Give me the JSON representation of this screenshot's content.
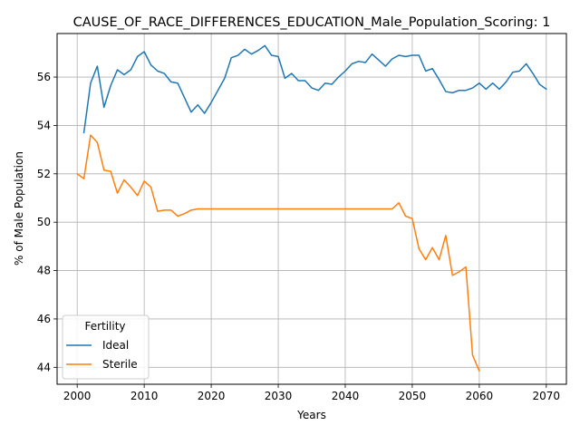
{
  "chart_data": {
    "type": "line",
    "title": "CAUSE_OF_RACE_DIFFERENCES_EDUCATION_Male_Population_Scoring: 1",
    "xlabel": "Years",
    "ylabel": "% of Male Population",
    "xlim": [
      1997,
      2073
    ],
    "ylim": [
      43.3,
      57.8
    ],
    "xticks": [
      2000,
      2010,
      2020,
      2030,
      2040,
      2050,
      2060,
      2070
    ],
    "yticks": [
      44,
      46,
      48,
      50,
      52,
      54,
      56
    ],
    "grid": true,
    "legend": {
      "title": "Fertility",
      "position": "lower-left"
    },
    "series": [
      {
        "name": "Ideal",
        "color": "#1f77b4",
        "x": [
          2001,
          2002,
          2003,
          2004,
          2005,
          2006,
          2007,
          2008,
          2009,
          2010,
          2011,
          2012,
          2013,
          2014,
          2015,
          2016,
          2017,
          2018,
          2019,
          2020,
          2021,
          2022,
          2023,
          2024,
          2025,
          2026,
          2027,
          2028,
          2029,
          2030,
          2031,
          2032,
          2033,
          2034,
          2035,
          2036,
          2037,
          2038,
          2039,
          2040,
          2041,
          2042,
          2043,
          2044,
          2045,
          2046,
          2047,
          2048,
          2049,
          2050,
          2051,
          2052,
          2053,
          2054,
          2055,
          2056,
          2057,
          2058,
          2059,
          2060,
          2061,
          2062,
          2063,
          2064,
          2065,
          2066,
          2067,
          2068,
          2069,
          2070
        ],
        "values": [
          53.7,
          55.75,
          56.45,
          54.75,
          55.65,
          56.3,
          56.1,
          56.3,
          56.85,
          57.05,
          56.5,
          56.25,
          56.15,
          55.8,
          55.75,
          55.15,
          54.55,
          54.85,
          54.5,
          54.95,
          55.45,
          55.95,
          56.8,
          56.9,
          57.15,
          56.95,
          57.1,
          57.3,
          56.9,
          56.85,
          55.95,
          56.15,
          55.85,
          55.85,
          55.55,
          55.45,
          55.75,
          55.7,
          56.0,
          56.25,
          56.55,
          56.65,
          56.6,
          56.95,
          56.7,
          56.45,
          56.75,
          56.9,
          56.85,
          56.9,
          56.9,
          56.25,
          56.35,
          55.9,
          55.4,
          55.35,
          55.45,
          55.45,
          55.55,
          55.75,
          55.5,
          55.75,
          55.5,
          55.8,
          56.2,
          56.25,
          56.55,
          56.15,
          55.7,
          55.5
        ]
      },
      {
        "name": "Sterile",
        "color": "#ff7f0e",
        "x": [
          2000,
          2001,
          2002,
          2003,
          2004,
          2005,
          2006,
          2007,
          2008,
          2009,
          2010,
          2011,
          2012,
          2013,
          2014,
          2015,
          2016,
          2017,
          2018,
          2019,
          2020,
          2021,
          2022,
          2023,
          2024,
          2025,
          2026,
          2027,
          2028,
          2029,
          2030,
          2031,
          2032,
          2033,
          2034,
          2035,
          2036,
          2037,
          2038,
          2039,
          2040,
          2041,
          2042,
          2043,
          2044,
          2045,
          2046,
          2047,
          2048,
          2049,
          2050,
          2051,
          2052,
          2053,
          2054,
          2055,
          2056,
          2057,
          2058,
          2059,
          2060
        ],
        "values": [
          52.0,
          51.8,
          53.6,
          53.3,
          52.15,
          52.1,
          51.2,
          51.75,
          51.45,
          51.1,
          51.7,
          51.45,
          50.45,
          50.5,
          50.5,
          50.25,
          50.35,
          50.5,
          50.55,
          50.55,
          50.55,
          50.55,
          50.55,
          50.55,
          50.55,
          50.55,
          50.55,
          50.55,
          50.55,
          50.55,
          50.55,
          50.55,
          50.55,
          50.55,
          50.55,
          50.55,
          50.55,
          50.55,
          50.55,
          50.55,
          50.55,
          50.55,
          50.55,
          50.55,
          50.55,
          50.55,
          50.55,
          50.55,
          50.8,
          50.25,
          50.15,
          48.9,
          48.45,
          48.95,
          48.45,
          49.45,
          47.8,
          47.95,
          48.15,
          44.5,
          43.85
        ]
      }
    ]
  }
}
